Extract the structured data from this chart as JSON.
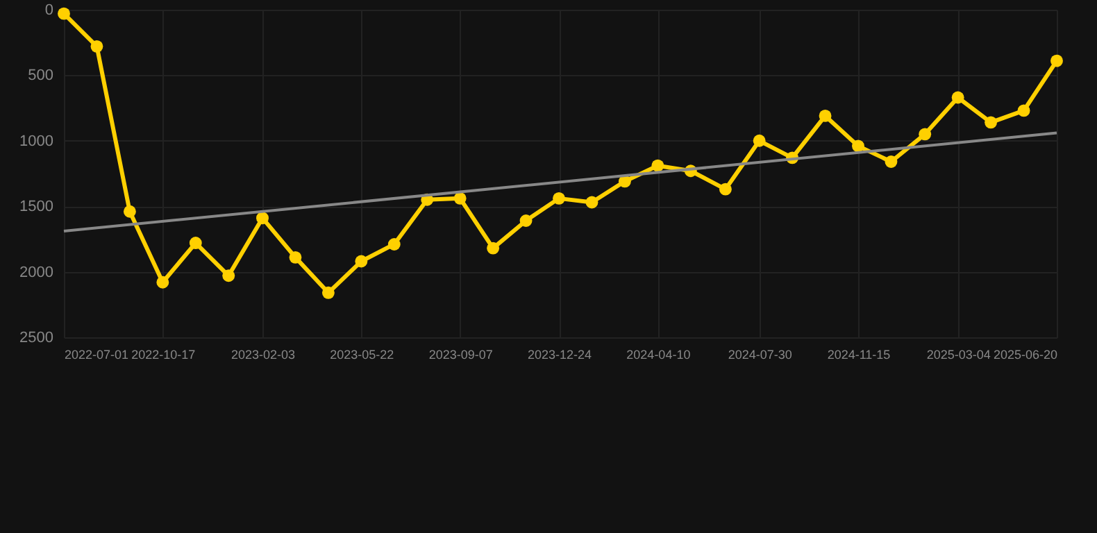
{
  "chart_data": {
    "type": "line",
    "x": [
      "2022-07-01",
      "2022-08-06",
      "2022-09-11",
      "2022-10-17",
      "2022-11-22",
      "2022-12-28",
      "2023-02-03",
      "2023-03-11",
      "2023-04-16",
      "2023-05-22",
      "2023-06-27",
      "2023-08-02",
      "2023-09-07",
      "2023-10-13",
      "2023-11-18",
      "2023-12-24",
      "2024-01-29",
      "2024-03-05",
      "2024-04-10",
      "2024-05-16",
      "2024-06-23",
      "2024-07-30",
      "2024-09-04",
      "2024-10-10",
      "2024-11-15",
      "2024-12-21",
      "2025-01-27",
      "2025-03-04",
      "2025-04-09",
      "2025-05-15",
      "2025-06-20"
    ],
    "series": [
      {
        "color": "#ffd000",
        "marker": "circle",
        "values": [
          30,
          280,
          1540,
          2080,
          1780,
          2030,
          1590,
          1890,
          2160,
          1920,
          1790,
          1450,
          1440,
          1820,
          1610,
          1440,
          1470,
          1310,
          1190,
          1230,
          1370,
          1000,
          1130,
          810,
          1040,
          1160,
          950,
          670,
          860,
          770,
          390
        ]
      },
      {
        "type": "line",
        "color": "#888888",
        "marker": "none",
        "x": [
          "2022-07-01",
          "2025-06-20"
        ],
        "values": [
          1690,
          940
        ]
      }
    ],
    "xlim": [
      "2022-07-01",
      "2025-06-20"
    ],
    "xticks": [
      "2022-07-01",
      "2022-10-17",
      "2023-02-03",
      "2023-05-22",
      "2023-09-07",
      "2023-12-24",
      "2024-04-10",
      "2024-07-30",
      "2024-11-15",
      "2025-03-04",
      "2025-06-20"
    ],
    "ylim": [
      2500,
      0
    ],
    "yticks": [
      0,
      500,
      1000,
      1500,
      2000,
      2500
    ],
    "grid": true,
    "line_style": "solid"
  }
}
